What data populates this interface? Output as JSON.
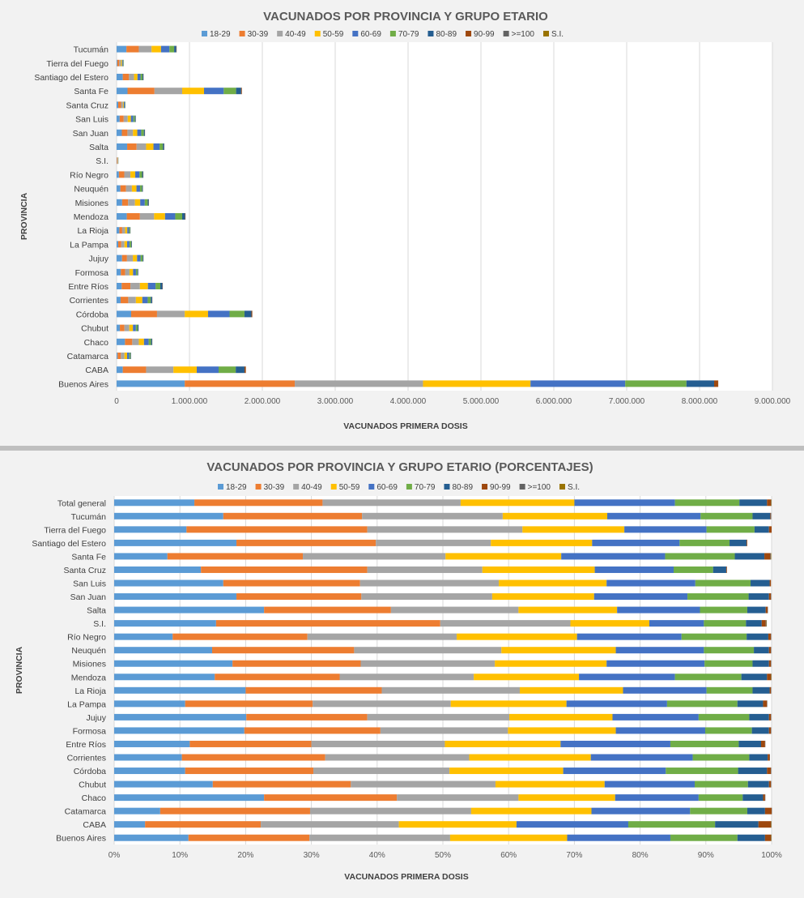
{
  "colors": [
    "#5b9bd5",
    "#ed7d31",
    "#a5a5a5",
    "#ffc000",
    "#4472c4",
    "#70ad47",
    "#255e91",
    "#9e480e",
    "#636363",
    "#997300"
  ],
  "chart_data": [
    {
      "type": "bar",
      "orientation": "horizontal",
      "stacked": true,
      "title": "VACUNADOS POR PROVINCIA Y GRUPO ETARIO",
      "xlabel": "VACUNADOS PRIMERA  DOSIS",
      "ylabel": "PROVINCIA",
      "xlim": [
        0,
        9000000
      ],
      "xticks": [
        "0",
        "1.000.000",
        "2.000.000",
        "3.000.000",
        "4.000.000",
        "5.000.000",
        "6.000.000",
        "7.000.000",
        "8.000.000",
        "9.000.000"
      ],
      "legend": "top",
      "grid": true,
      "categories": [
        "Tucumán",
        "Tierra del Fuego",
        "Santiago del Estero",
        "Santa Fe",
        "Santa Cruz",
        "San Luis",
        "San Juan",
        "Salta",
        "S.I.",
        "Río Negro",
        "Neuquén",
        "Misiones",
        "Mendoza",
        "La Rioja",
        "La Pampa",
        "Jujuy",
        "Formosa",
        "Entre Ríos",
        "Corrientes",
        "Córdoba",
        "Chubut",
        "Chaco",
        "Catamarca",
        "CABA",
        "Buenos Aires"
      ],
      "series": [
        {
          "name": "18-29",
          "values": [
            135000,
            10000,
            85000,
            150000,
            22000,
            43000,
            72000,
            145000,
            4000,
            32000,
            52000,
            76000,
            140000,
            38000,
            22000,
            75000,
            58000,
            70000,
            55000,
            200000,
            45000,
            115000,
            14000,
            85000,
            935000
          ]
        },
        {
          "name": "30-39",
          "values": [
            170000,
            27000,
            85000,
            370000,
            39000,
            55000,
            77000,
            130000,
            9000,
            74000,
            78000,
            82000,
            180000,
            39000,
            42000,
            68000,
            60000,
            120000,
            105000,
            355000,
            63000,
            100000,
            45000,
            320000,
            1510000
          ]
        },
        {
          "name": "40-49",
          "values": [
            175000,
            23000,
            70000,
            380000,
            27000,
            55000,
            76000,
            130000,
            5500,
            84000,
            80000,
            94000,
            195000,
            40000,
            44000,
            80000,
            59000,
            130000,
            105000,
            380000,
            66000,
            90000,
            49000,
            375000,
            1760000
          ]
        },
        {
          "name": "50-59",
          "values": [
            130000,
            15000,
            47000,
            300000,
            11000,
            43000,
            59000,
            101000,
            3000,
            66000,
            63000,
            72000,
            150000,
            30000,
            37000,
            58000,
            49000,
            110000,
            88000,
            320000,
            50000,
            71000,
            36000,
            320000,
            1475000
          ]
        },
        {
          "name": "60-69",
          "values": [
            115000,
            12000,
            42000,
            270000,
            15000,
            34000,
            54000,
            84000,
            2000,
            58000,
            49000,
            63000,
            140000,
            24000,
            31000,
            48000,
            40000,
            105000,
            74000,
            295000,
            41000,
            64000,
            30000,
            300000,
            1300000
          ]
        },
        {
          "name": "70-79",
          "values": [
            65000,
            7000,
            26000,
            170000,
            6000,
            22000,
            36000,
            45000,
            1500,
            36000,
            27000,
            40000,
            95000,
            14000,
            23000,
            28000,
            21000,
            65000,
            42000,
            205000,
            24000,
            33000,
            17000,
            235000,
            840000
          ]
        },
        {
          "name": "80-89",
          "values": [
            30000,
            2700,
            13000,
            70000,
            1900,
            10000,
            14000,
            18000,
            800,
            15000,
            11000,
            15000,
            40000,
            5000,
            10000,
            11000,
            9000,
            30000,
            19000,
            95000,
            11000,
            15000,
            7000,
            120000,
            380000
          ]
        },
        {
          "name": "90-99",
          "values": [
            4000,
            400,
            2000,
            9000,
            300,
            1500,
            2000,
            2500,
            200,
            2500,
            1500,
            2000,
            5500,
            800,
            1500,
            1500,
            1200,
            4000,
            2500,
            12000,
            1500,
            2000,
            1000,
            18000,
            55000
          ]
        },
        {
          "name": ">=100",
          "values": [
            100,
            10,
            50,
            200,
            10,
            30,
            50,
            60,
            5,
            60,
            40,
            50,
            120,
            20,
            30,
            30,
            30,
            90,
            60,
            300,
            30,
            50,
            30,
            400,
            1200
          ]
        },
        {
          "name": "S.I.",
          "values": [
            50,
            5,
            30,
            150,
            5,
            20,
            30,
            40,
            5,
            30,
            20,
            30,
            80,
            10,
            20,
            20,
            20,
            50,
            30,
            200,
            20,
            30,
            10,
            300,
            800
          ]
        }
      ]
    },
    {
      "type": "bar",
      "orientation": "horizontal",
      "stacked": true,
      "percent": true,
      "title": "VACUNADOS POR PROVINCIA Y GRUPO ETARIO (PORCENTAJES)",
      "xlabel": "VACUNADOS PRIMERA  DOSIS",
      "ylabel": "PROVINCIA",
      "xlim": [
        0,
        100
      ],
      "xticks": [
        "0%",
        "10%",
        "20%",
        "30%",
        "40%",
        "50%",
        "60%",
        "70%",
        "80%",
        "90%",
        "100%"
      ],
      "legend": "top",
      "grid": true,
      "categories": [
        "Total general",
        "Tucumán",
        "Tierra del Fuego",
        "Santiago del Estero",
        "Santa Fe",
        "Santa Cruz",
        "San Luis",
        "San Juan",
        "Salta",
        "S.I.",
        "Río Negro",
        "Neuquén",
        "Misiones",
        "Mendoza",
        "La Rioja",
        "La Pampa",
        "Jujuy",
        "Formosa",
        "Entre Ríos",
        "Corrientes",
        "Córdoba",
        "Chubut",
        "Chaco",
        "Catamarca",
        "CABA",
        "Buenos Aires"
      ],
      "series": [
        {
          "name": "18-29",
          "values": [
            12.2,
            16.6,
            11.0,
            18.6,
            8.1,
            13.2,
            16.6,
            18.6,
            22.8,
            15.5,
            8.9,
            14.9,
            18.0,
            15.3,
            20.0,
            10.8,
            20.1,
            19.8,
            11.5,
            10.3,
            10.8,
            15.0,
            22.8,
            7.0,
            4.7,
            11.3
          ]
        },
        {
          "name": "30-39",
          "values": [
            19.5,
            21.1,
            27.5,
            21.2,
            20.6,
            25.3,
            20.8,
            19.0,
            19.3,
            34.1,
            20.5,
            21.6,
            19.5,
            19.0,
            20.7,
            19.4,
            18.4,
            20.7,
            18.5,
            21.8,
            19.5,
            21.0,
            20.2,
            22.8,
            17.6,
            18.4
          ]
        },
        {
          "name": "40-49",
          "values": [
            21.0,
            21.4,
            23.6,
            17.5,
            21.7,
            17.5,
            21.1,
            19.9,
            19.4,
            19.8,
            22.7,
            22.4,
            20.4,
            20.4,
            21.0,
            21.0,
            21.6,
            19.4,
            20.3,
            21.9,
            20.7,
            22.0,
            18.5,
            24.5,
            21.0,
            21.4
          ]
        },
        {
          "name": "50-59",
          "values": [
            17.3,
            15.9,
            15.5,
            15.4,
            17.6,
            17.1,
            16.4,
            15.5,
            15.0,
            12.0,
            18.3,
            17.4,
            17.0,
            16.0,
            15.7,
            17.6,
            15.7,
            16.4,
            17.6,
            18.5,
            17.3,
            16.6,
            14.7,
            18.3,
            17.9,
            17.8
          ]
        },
        {
          "name": "60-69",
          "values": [
            15.3,
            14.2,
            12.5,
            13.3,
            15.8,
            12.0,
            13.5,
            14.2,
            12.6,
            8.3,
            15.9,
            13.4,
            14.9,
            14.6,
            12.7,
            15.3,
            13.1,
            13.6,
            16.7,
            15.5,
            15.6,
            13.7,
            12.7,
            15.0,
            17.0,
            15.7
          ]
        },
        {
          "name": "70-79",
          "values": [
            9.8,
            7.9,
            7.3,
            7.6,
            10.6,
            6.0,
            8.4,
            9.3,
            7.2,
            6.4,
            9.9,
            7.6,
            7.3,
            10.1,
            7.0,
            10.7,
            7.7,
            7.1,
            10.4,
            8.6,
            11.0,
            8.1,
            6.7,
            8.7,
            13.2,
            10.2
          ]
        },
        {
          "name": "80-89",
          "values": [
            4.2,
            2.7,
            2.2,
            2.6,
            4.5,
            2.0,
            2.9,
            3.1,
            2.8,
            2.4,
            3.3,
            2.3,
            2.5,
            3.9,
            2.6,
            3.9,
            3.0,
            2.6,
            3.4,
            2.8,
            4.4,
            3.2,
            3.1,
            2.7,
            6.6,
            4.2
          ]
        },
        {
          "name": "90-99",
          "values": [
            0.6,
            0.1,
            0.4,
            0.1,
            0.9,
            0.1,
            0.2,
            0.3,
            0.3,
            0.6,
            0.4,
            0.3,
            0.3,
            0.6,
            0.2,
            0.6,
            0.3,
            0.3,
            0.6,
            0.3,
            0.6,
            0.3,
            0.3,
            1.0,
            1.9,
            0.9
          ]
        },
        {
          "name": ">=100",
          "values": [
            0.05,
            0.05,
            0.0,
            0.0,
            0.1,
            0.0,
            0.0,
            0.05,
            0.05,
            0.1,
            0.05,
            0.05,
            0.05,
            0.05,
            0.05,
            0.05,
            0.05,
            0.05,
            0.05,
            0.05,
            0.05,
            0.05,
            0.05,
            0.05,
            0.05,
            0.05
          ]
        },
        {
          "name": "S.I.",
          "values": [
            0.05,
            0.0,
            0.0,
            0.0,
            0.05,
            0.0,
            0.0,
            0.0,
            0.0,
            0.05,
            0.0,
            0.0,
            0.0,
            0.05,
            0.0,
            0.0,
            0.0,
            0.0,
            0.0,
            0.0,
            0.0,
            0.0,
            0.0,
            0.0,
            0.05,
            0.05
          ]
        }
      ]
    }
  ]
}
